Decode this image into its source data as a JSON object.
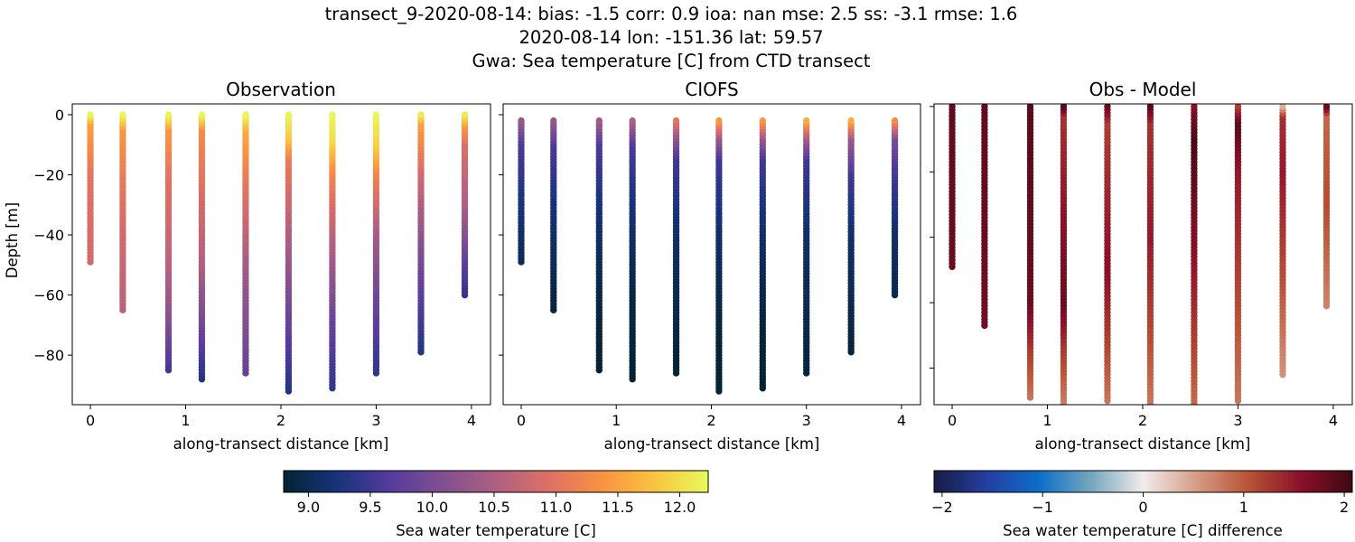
{
  "title": {
    "line1": "transect_9-2020-08-14: bias: -1.5  corr: 0.9  ioa: nan  mse: 2.5  ss: -3.1  rmse: 1.6",
    "line2": "2020-08-14 lon: -151.36 lat: 59.57",
    "line3": "Gwa: Sea temperature [C] from CTD transect"
  },
  "chart_data": [
    {
      "type": "scatter",
      "title": "Observation",
      "xlabel": "along-transect distance [km]",
      "ylabel": "Depth [m]",
      "xlim": [
        -0.19,
        4.2
      ],
      "ylim": [
        -96.5,
        3.6
      ],
      "xticks": [
        "0",
        "1",
        "2",
        "3",
        "4"
      ],
      "yticks": [
        "0",
        "−20",
        "−40",
        "−60",
        "−80"
      ],
      "colormap": "thermal",
      "color_range": [
        8.8,
        12.23
      ],
      "stations": [
        {
          "x": 0.0,
          "depth": [
            0,
            -3,
            -10,
            -20,
            -49
          ],
          "value": [
            12.2,
            11.5,
            11.3,
            11.0,
            10.8
          ]
        },
        {
          "x": 0.34,
          "depth": [
            0,
            -5,
            -20,
            -40,
            -65
          ],
          "value": [
            12.2,
            11.4,
            11.1,
            10.8,
            10.6
          ]
        },
        {
          "x": 0.82,
          "depth": [
            0,
            -5,
            -20,
            -50,
            -65,
            -85
          ],
          "value": [
            12.2,
            11.4,
            11.0,
            10.6,
            10.2,
            9.5
          ]
        },
        {
          "x": 1.17,
          "depth": [
            0,
            -5,
            -20,
            -50,
            -70,
            -88
          ],
          "value": [
            12.2,
            11.3,
            11.0,
            10.5,
            9.9,
            9.3
          ]
        },
        {
          "x": 1.63,
          "depth": [
            0,
            -5,
            -20,
            -50,
            -86
          ],
          "value": [
            12.2,
            11.6,
            11.1,
            10.4,
            9.8
          ]
        },
        {
          "x": 2.08,
          "depth": [
            0,
            -8,
            -15,
            -40,
            -70,
            -92
          ],
          "value": [
            12.2,
            11.8,
            11.1,
            10.5,
            9.8,
            9.3
          ]
        },
        {
          "x": 2.54,
          "depth": [
            0,
            -8,
            -20,
            -40,
            -70,
            -91
          ],
          "value": [
            12.2,
            12.0,
            11.2,
            10.6,
            9.8,
            9.4
          ]
        },
        {
          "x": 3.0,
          "depth": [
            0,
            -10,
            -20,
            -40,
            -60,
            -86
          ],
          "value": [
            12.2,
            11.9,
            11.2,
            10.4,
            9.9,
            9.4
          ]
        },
        {
          "x": 3.47,
          "depth": [
            0,
            -3,
            -20,
            -40,
            -60,
            -79
          ],
          "value": [
            12.1,
            11.5,
            10.8,
            10.2,
            9.7,
            9.3
          ]
        },
        {
          "x": 3.93,
          "depth": [
            0,
            -4,
            -10,
            -30,
            -50,
            -60
          ],
          "value": [
            12.1,
            11.4,
            10.9,
            10.5,
            9.7,
            9.4
          ]
        }
      ]
    },
    {
      "type": "scatter",
      "title": "CIOFS",
      "xlabel": "along-transect distance [km]",
      "xlim": [
        -0.19,
        4.2
      ],
      "ylim": [
        -96.5,
        3.6
      ],
      "xticks": [
        "0",
        "1",
        "2",
        "3",
        "4"
      ],
      "colormap": "thermal",
      "color_range": [
        8.8,
        12.23
      ],
      "stations": [
        {
          "x": 0.0,
          "depth": [
            -2,
            -10,
            -25,
            -49
          ],
          "value": [
            10.3,
            9.6,
            9.3,
            9.0
          ]
        },
        {
          "x": 0.34,
          "depth": [
            -2,
            -10,
            -30,
            -65
          ],
          "value": [
            10.3,
            9.6,
            9.2,
            8.85
          ]
        },
        {
          "x": 0.82,
          "depth": [
            -2,
            -10,
            -30,
            -60,
            -85
          ],
          "value": [
            10.4,
            9.6,
            9.2,
            8.9,
            8.8
          ]
        },
        {
          "x": 1.17,
          "depth": [
            -2,
            -10,
            -30,
            -60,
            -88
          ],
          "value": [
            10.5,
            9.6,
            9.2,
            8.9,
            8.8
          ]
        },
        {
          "x": 1.63,
          "depth": [
            -2,
            -8,
            -15,
            -40,
            -86
          ],
          "value": [
            11.0,
            10.2,
            9.5,
            9.1,
            8.8
          ]
        },
        {
          "x": 2.08,
          "depth": [
            -2,
            -8,
            -15,
            -40,
            -70,
            -92
          ],
          "value": [
            11.4,
            10.3,
            9.5,
            9.1,
            8.85,
            8.8
          ]
        },
        {
          "x": 2.54,
          "depth": [
            -2,
            -8,
            -15,
            -40,
            -70,
            -91
          ],
          "value": [
            11.4,
            10.3,
            9.5,
            9.1,
            8.85,
            8.8
          ]
        },
        {
          "x": 3.0,
          "depth": [
            -2,
            -8,
            -15,
            -40,
            -86
          ],
          "value": [
            11.6,
            10.4,
            9.5,
            9.1,
            8.85
          ]
        },
        {
          "x": 3.47,
          "depth": [
            -2,
            -8,
            -20,
            -40,
            -79
          ],
          "value": [
            11.6,
            10.3,
            9.5,
            9.1,
            8.85
          ]
        },
        {
          "x": 3.93,
          "depth": [
            -2,
            -8,
            -20,
            -40,
            -60
          ],
          "value": [
            11.3,
            10.0,
            9.5,
            9.1,
            8.95
          ]
        }
      ]
    },
    {
      "type": "scatter",
      "title": "Obs - Model",
      "xlabel": "along-transect distance [km]",
      "xlim": [
        -0.19,
        4.2
      ],
      "ylim": [
        -91.2,
        0.8
      ],
      "xticks": [
        "0",
        "1",
        "2",
        "3",
        "4"
      ],
      "colormap": "balance",
      "color_range": [
        -2.08,
        2.08
      ],
      "stations": [
        {
          "x": 0.0,
          "depth": [
            0,
            -49
          ],
          "value": [
            1.85,
            1.8
          ]
        },
        {
          "x": 0.34,
          "depth": [
            0,
            -67
          ],
          "value": [
            1.85,
            1.75
          ]
        },
        {
          "x": 0.82,
          "depth": [
            0,
            -60,
            -75,
            -89
          ],
          "value": [
            1.9,
            1.8,
            1.2,
            0.8
          ]
        },
        {
          "x": 1.17,
          "depth": [
            0,
            -3,
            -60,
            -75,
            -92
          ],
          "value": [
            1.9,
            1.3,
            1.8,
            1.2,
            0.7
          ]
        },
        {
          "x": 1.63,
          "depth": [
            0,
            -5,
            -50,
            -75,
            -90
          ],
          "value": [
            1.8,
            1.2,
            1.6,
            1.1,
            0.8
          ]
        },
        {
          "x": 2.08,
          "depth": [
            0,
            -5,
            -40,
            -70,
            -97
          ],
          "value": [
            1.9,
            1.3,
            1.5,
            1.1,
            0.7
          ]
        },
        {
          "x": 2.54,
          "depth": [
            0,
            -10,
            -50,
            -70,
            -96
          ],
          "value": [
            1.6,
            2.0,
            1.5,
            1.2,
            0.8
          ]
        },
        {
          "x": 3.0,
          "depth": [
            0,
            -5,
            -20,
            -50,
            -90
          ],
          "value": [
            1.2,
            1.9,
            1.5,
            1.2,
            0.8
          ]
        },
        {
          "x": 3.47,
          "depth": [
            0,
            -3,
            -20,
            -50,
            -82
          ],
          "value": [
            0.4,
            1.3,
            1.5,
            1.1,
            0.6
          ]
        },
        {
          "x": 3.93,
          "depth": [
            0,
            -3,
            -30,
            -45,
            -61
          ],
          "value": [
            1.8,
            0.9,
            1.1,
            0.9,
            0.7
          ]
        }
      ]
    }
  ],
  "colorbars": [
    {
      "label": "Sea water temperature [C]",
      "colormap": "thermal",
      "range": [
        8.8,
        12.23
      ],
      "ticks": [
        9.0,
        9.5,
        10.0,
        10.5,
        11.0,
        11.5,
        12.0
      ],
      "tick_labels": [
        "9.0",
        "9.5",
        "10.0",
        "10.5",
        "11.0",
        "11.5",
        "12.0"
      ]
    },
    {
      "label": "Sea water temperature [C] difference",
      "colormap": "balance",
      "range": [
        -2.08,
        2.08
      ],
      "ticks": [
        -2,
        -1,
        0,
        1,
        2
      ],
      "tick_labels": [
        "−2",
        "−1",
        "0",
        "1",
        "2"
      ]
    }
  ],
  "colormaps": {
    "thermal": [
      "#042333",
      "#17337a",
      "#553b9d",
      "#814f8f",
      "#af5f82",
      "#de7065",
      "#f99242",
      "#f9c441",
      "#e8fa5b"
    ],
    "balance": [
      "#181c43",
      "#253ea0",
      "#0c6dc9",
      "#75a6bd",
      "#f1eceb",
      "#d79d89",
      "#b85436",
      "#8c112b",
      "#3c0912"
    ]
  }
}
